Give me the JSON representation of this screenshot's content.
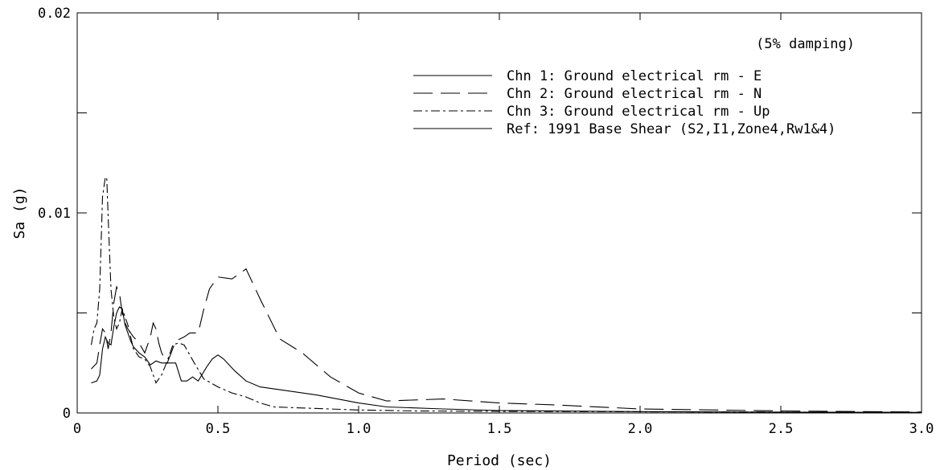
{
  "chart_data": {
    "type": "line",
    "xlabel": "Period (sec)",
    "ylabel": "Sa (g)",
    "xlim": [
      0,
      3.0
    ],
    "ylim": [
      0,
      0.02
    ],
    "x_ticks": [
      0,
      0.5,
      1.0,
      1.5,
      2.0,
      2.5,
      3.0
    ],
    "x_tick_labels": [
      "0",
      "0.5",
      "1.0",
      "1.5",
      "2.0",
      "2.5",
      "3.0"
    ],
    "y_ticks": [
      0,
      0.01,
      0.02
    ],
    "y_tick_labels": [
      "0",
      "0.01",
      "0.02"
    ],
    "grid": false,
    "legend_position": "top-right",
    "annotation": "(5% damping)",
    "series": [
      {
        "name": "Chn 1: Ground electrical rm - E",
        "style": "solid",
        "points": [
          [
            0.05,
            0.0015
          ],
          [
            0.07,
            0.0016
          ],
          [
            0.08,
            0.0019
          ],
          [
            0.09,
            0.0032
          ],
          [
            0.1,
            0.0038
          ],
          [
            0.11,
            0.0035
          ],
          [
            0.12,
            0.0034
          ],
          [
            0.13,
            0.0043
          ],
          [
            0.14,
            0.005
          ],
          [
            0.15,
            0.0053
          ],
          [
            0.16,
            0.0052
          ],
          [
            0.17,
            0.0044
          ],
          [
            0.18,
            0.004
          ],
          [
            0.19,
            0.0036
          ],
          [
            0.2,
            0.0033
          ],
          [
            0.22,
            0.003
          ],
          [
            0.24,
            0.0028
          ],
          [
            0.26,
            0.0024
          ],
          [
            0.28,
            0.0026
          ],
          [
            0.3,
            0.0025
          ],
          [
            0.33,
            0.0025
          ],
          [
            0.35,
            0.0025
          ],
          [
            0.37,
            0.0016
          ],
          [
            0.39,
            0.0016
          ],
          [
            0.41,
            0.0018
          ],
          [
            0.43,
            0.0016
          ],
          [
            0.46,
            0.0023
          ],
          [
            0.48,
            0.0027
          ],
          [
            0.5,
            0.0029
          ],
          [
            0.52,
            0.0027
          ],
          [
            0.56,
            0.0021
          ],
          [
            0.6,
            0.0016
          ],
          [
            0.65,
            0.0013
          ],
          [
            0.75,
            0.0011
          ],
          [
            0.85,
            0.0009
          ],
          [
            1.0,
            0.0005
          ],
          [
            1.1,
            0.0003
          ],
          [
            1.3,
            0.0002
          ],
          [
            1.5,
            0.00012
          ],
          [
            2.0,
            7e-05
          ],
          [
            2.5,
            4e-05
          ],
          [
            3.0,
            3e-05
          ]
        ]
      },
      {
        "name": "Chn 2: Ground electrical rm - N",
        "style": "long-dash",
        "points": [
          [
            0.05,
            0.0022
          ],
          [
            0.07,
            0.0025
          ],
          [
            0.08,
            0.0034
          ],
          [
            0.09,
            0.0042
          ],
          [
            0.1,
            0.004
          ],
          [
            0.11,
            0.0032
          ],
          [
            0.12,
            0.004
          ],
          [
            0.13,
            0.0055
          ],
          [
            0.14,
            0.0063
          ],
          [
            0.15,
            0.006
          ],
          [
            0.16,
            0.005
          ],
          [
            0.17,
            0.0045
          ],
          [
            0.18,
            0.0042
          ],
          [
            0.2,
            0.0038
          ],
          [
            0.22,
            0.0035
          ],
          [
            0.24,
            0.003
          ],
          [
            0.26,
            0.0038
          ],
          [
            0.27,
            0.0045
          ],
          [
            0.28,
            0.0042
          ],
          [
            0.29,
            0.0035
          ],
          [
            0.3,
            0.003
          ],
          [
            0.32,
            0.0025
          ],
          [
            0.35,
            0.0036
          ],
          [
            0.38,
            0.0038
          ],
          [
            0.4,
            0.004
          ],
          [
            0.43,
            0.004
          ],
          [
            0.45,
            0.0052
          ],
          [
            0.47,
            0.0062
          ],
          [
            0.5,
            0.0068
          ],
          [
            0.55,
            0.0067
          ],
          [
            0.6,
            0.0072
          ],
          [
            0.65,
            0.0057
          ],
          [
            0.72,
            0.0037
          ],
          [
            0.8,
            0.003
          ],
          [
            0.9,
            0.0018
          ],
          [
            1.0,
            0.001
          ],
          [
            1.1,
            0.0006
          ],
          [
            1.3,
            0.0007
          ],
          [
            1.5,
            0.0005
          ],
          [
            1.7,
            0.0004
          ],
          [
            2.0,
            0.0002
          ],
          [
            2.5,
            0.0001
          ],
          [
            3.0,
            5e-05
          ]
        ]
      },
      {
        "name": "Chn 3: Ground electrical rm - Up",
        "style": "dash-dot",
        "points": [
          [
            0.05,
            0.0034
          ],
          [
            0.06,
            0.0042
          ],
          [
            0.07,
            0.0045
          ],
          [
            0.08,
            0.0062
          ],
          [
            0.09,
            0.0108
          ],
          [
            0.1,
            0.0118
          ],
          [
            0.105,
            0.0117
          ],
          [
            0.11,
            0.0098
          ],
          [
            0.12,
            0.0062
          ],
          [
            0.13,
            0.0048
          ],
          [
            0.14,
            0.0042
          ],
          [
            0.15,
            0.0045
          ],
          [
            0.16,
            0.0052
          ],
          [
            0.18,
            0.0044
          ],
          [
            0.2,
            0.0032
          ],
          [
            0.22,
            0.0028
          ],
          [
            0.24,
            0.0027
          ],
          [
            0.26,
            0.0023
          ],
          [
            0.28,
            0.0015
          ],
          [
            0.3,
            0.0019
          ],
          [
            0.32,
            0.0026
          ],
          [
            0.34,
            0.0034
          ],
          [
            0.36,
            0.0035
          ],
          [
            0.38,
            0.0034
          ],
          [
            0.4,
            0.0029
          ],
          [
            0.42,
            0.0024
          ],
          [
            0.45,
            0.0017
          ],
          [
            0.5,
            0.0013
          ],
          [
            0.55,
            0.001
          ],
          [
            0.6,
            0.0008
          ],
          [
            0.65,
            0.0005
          ],
          [
            0.7,
            0.0003
          ],
          [
            0.8,
            0.00025
          ],
          [
            1.0,
            0.00015
          ],
          [
            1.2,
            0.0001
          ],
          [
            1.5,
            8e-05
          ],
          [
            2.0,
            6e-05
          ],
          [
            3.0,
            3e-05
          ]
        ]
      },
      {
        "name": "Ref: 1991 Base Shear (S2,I1,Zone4,Rw1&4)",
        "style": "solid",
        "points": []
      }
    ]
  }
}
